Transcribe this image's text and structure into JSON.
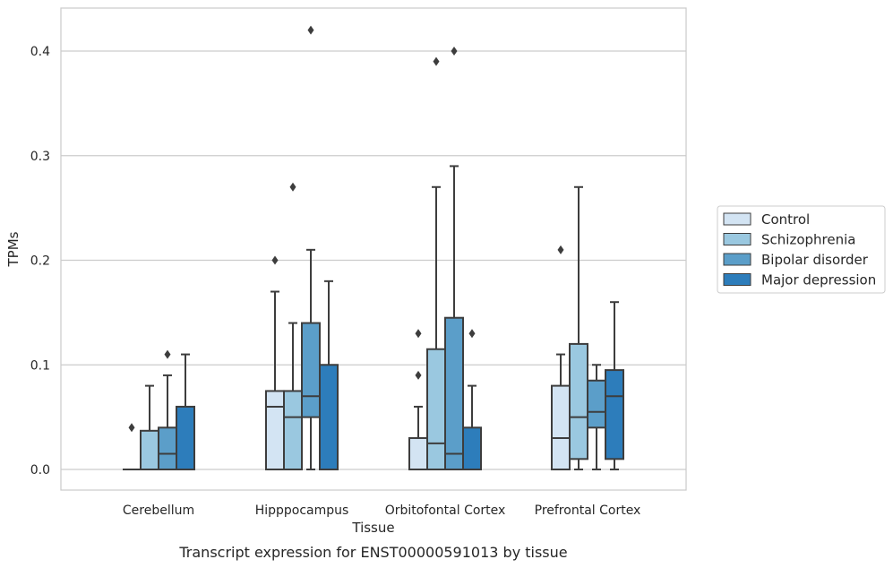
{
  "chart_data": {
    "type": "box",
    "xlabel": "Tissue",
    "ylabel": "TPMs",
    "caption": "Transcript expression for ENST00000591013 by tissue",
    "ylim": [
      -0.02,
      0.44
    ],
    "yticks": [
      "0.0",
      "0.1",
      "0.2",
      "0.3",
      "0.4"
    ],
    "grid": "horizontal",
    "legend_position": "right",
    "categories": [
      "Cerebellum",
      "Hipppocampus",
      "Orbitofontal Cortex",
      "Prefrontal Cortex"
    ],
    "series": [
      {
        "name": "Control",
        "color": "#d3e4f3",
        "boxes": [
          {
            "whislo": 0,
            "q1": 0,
            "med": 0,
            "q3": 0,
            "whishi": 0,
            "fliers": [
              0.04
            ]
          },
          {
            "whislo": 0,
            "q1": 0,
            "med": 0.06,
            "q3": 0.075,
            "whishi": 0.17,
            "fliers": [
              0.2
            ]
          },
          {
            "whislo": 0,
            "q1": 0,
            "med": 0,
            "q3": 0.03,
            "whishi": 0.06,
            "fliers": [
              0.09,
              0.13
            ]
          },
          {
            "whislo": 0,
            "q1": 0,
            "med": 0.03,
            "q3": 0.08,
            "whishi": 0.11,
            "fliers": [
              0.21
            ]
          }
        ]
      },
      {
        "name": "Schizophrenia",
        "color": "#9ac8e0",
        "boxes": [
          {
            "whislo": 0,
            "q1": 0,
            "med": 0,
            "q3": 0.037,
            "whishi": 0.08,
            "fliers": []
          },
          {
            "whislo": 0,
            "q1": 0,
            "med": 0.05,
            "q3": 0.075,
            "whishi": 0.14,
            "fliers": [
              0.27
            ]
          },
          {
            "whislo": 0,
            "q1": 0,
            "med": 0.025,
            "q3": 0.115,
            "whishi": 0.27,
            "fliers": [
              0.39
            ]
          },
          {
            "whislo": 0,
            "q1": 0.01,
            "med": 0.05,
            "q3": 0.12,
            "whishi": 0.27,
            "fliers": []
          }
        ]
      },
      {
        "name": "Bipolar disorder",
        "color": "#5b9ec9",
        "boxes": [
          {
            "whislo": 0,
            "q1": 0,
            "med": 0.015,
            "q3": 0.04,
            "whishi": 0.09,
            "fliers": [
              0.11
            ]
          },
          {
            "whislo": 0,
            "q1": 0.05,
            "med": 0.07,
            "q3": 0.14,
            "whishi": 0.21,
            "fliers": [
              0.42
            ]
          },
          {
            "whislo": 0,
            "q1": 0,
            "med": 0.015,
            "q3": 0.145,
            "whishi": 0.29,
            "fliers": [
              0.4
            ]
          },
          {
            "whislo": 0,
            "q1": 0.04,
            "med": 0.055,
            "q3": 0.085,
            "whishi": 0.1,
            "fliers": []
          }
        ]
      },
      {
        "name": "Major depression",
        "color": "#2d7dbb",
        "boxes": [
          {
            "whislo": 0,
            "q1": 0,
            "med": 0,
            "q3": 0.06,
            "whishi": 0.11,
            "fliers": []
          },
          {
            "whislo": 0,
            "q1": 0,
            "med": 0,
            "q3": 0.1,
            "whishi": 0.18,
            "fliers": []
          },
          {
            "whislo": 0,
            "q1": 0,
            "med": 0,
            "q3": 0.04,
            "whishi": 0.08,
            "fliers": [
              0.13
            ]
          },
          {
            "whislo": 0,
            "q1": 0.01,
            "med": 0.07,
            "q3": 0.095,
            "whishi": 0.16,
            "fliers": []
          }
        ]
      }
    ]
  }
}
